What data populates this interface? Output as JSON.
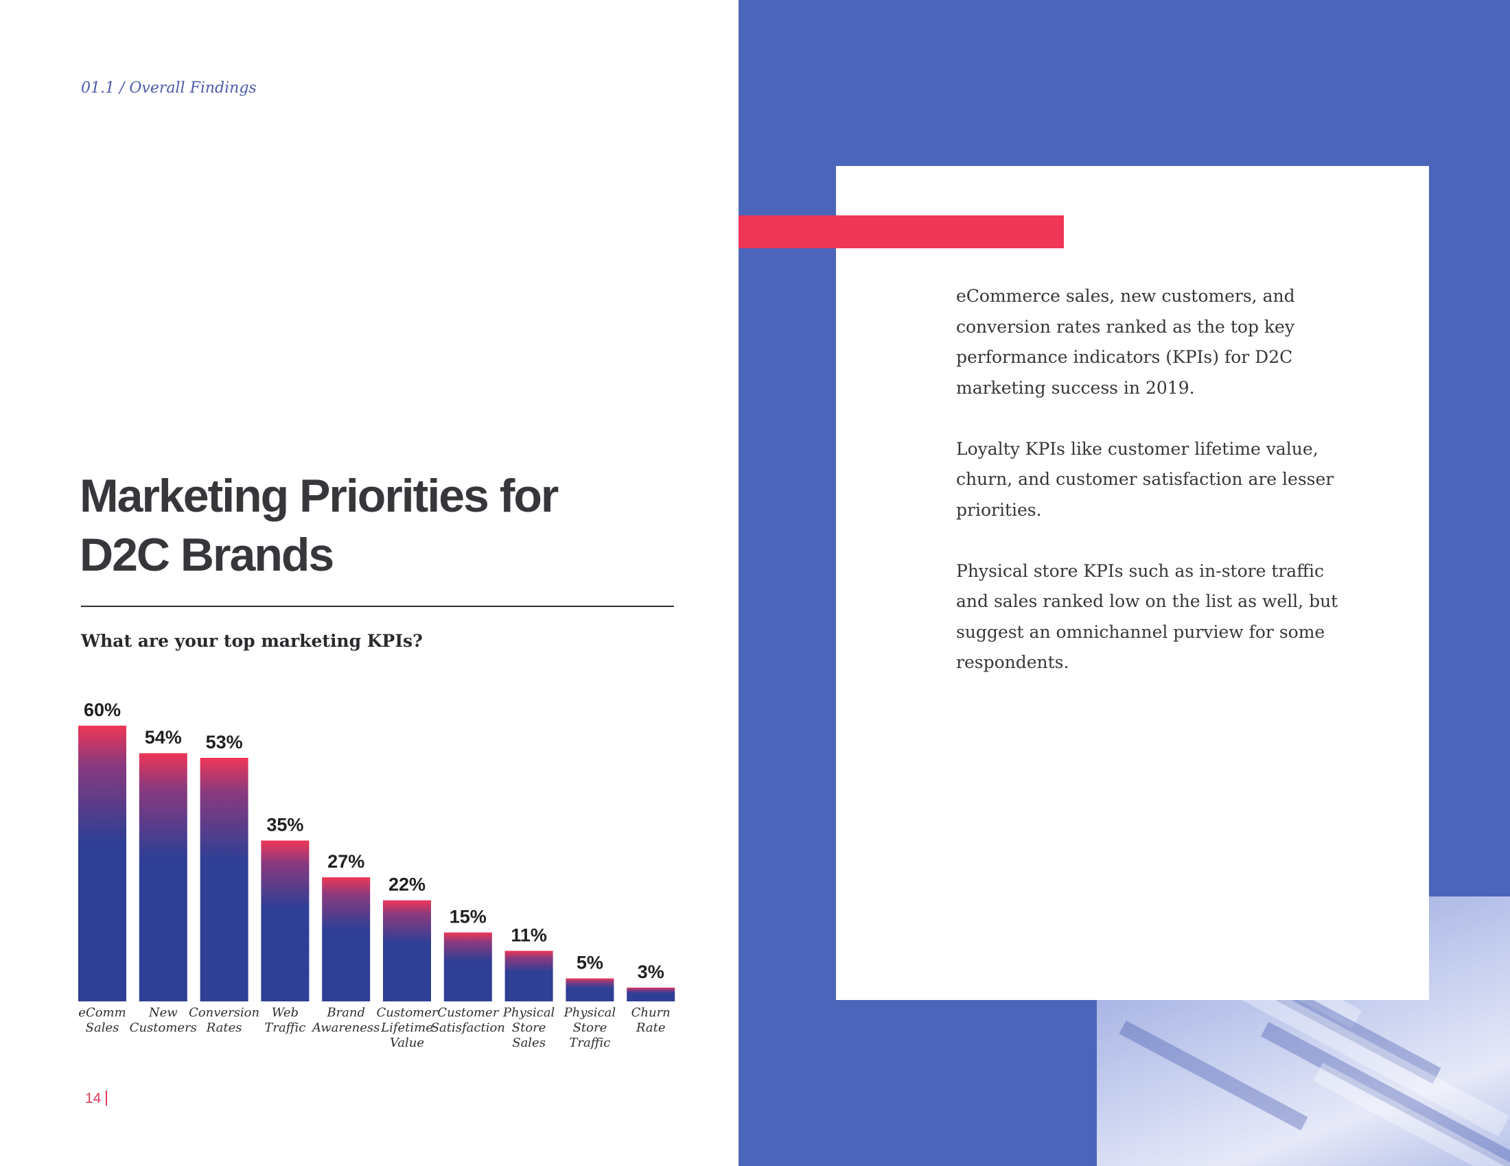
{
  "header": {
    "section_label": "01.1 / Overall Findings"
  },
  "title": {
    "line1": "Marketing Priorities for",
    "line2": "D2C Brands"
  },
  "question": "What are your top marketing KPIs?",
  "chart_data": {
    "type": "bar",
    "title": "What are your top marketing KPIs?",
    "categories": [
      [
        "eComm",
        "Sales"
      ],
      [
        "New",
        "Customers"
      ],
      [
        "Conversion",
        "Rates"
      ],
      [
        "Web",
        "Traffic"
      ],
      [
        "Brand",
        "Awareness"
      ],
      [
        "Customer",
        "Lifetime",
        "Value"
      ],
      [
        "Customer",
        "Satisfaction"
      ],
      [
        "Physical",
        "Store",
        "Sales"
      ],
      [
        "Physical",
        "Store",
        "Traffic"
      ],
      [
        "Churn",
        "Rate"
      ]
    ],
    "values": [
      60,
      54,
      53,
      35,
      27,
      22,
      15,
      11,
      5,
      3
    ],
    "value_labels": [
      "60%",
      "54%",
      "53%",
      "35%",
      "27%",
      "22%",
      "15%",
      "11%",
      "5%",
      "3%"
    ],
    "ylim": [
      0,
      60
    ],
    "grid": false,
    "colors": {
      "bar_top": "#ef3656",
      "bar_body": "#2f3f95"
    }
  },
  "body_paragraphs": [
    "eCommerce sales, new customers, and conversion rates ranked as the top key performance indicators (KPIs) for D2C marketing success in 2019.",
    "Loyalty KPIs like customer lifetime value, churn, and customer satisfaction are lesser priorities.",
    "Physical store KPIs such as in-store traffic and sales ranked low on the list as well, but suggest an omnichannel purview for some respondents."
  ],
  "footer": {
    "page_number": "14"
  },
  "colors": {
    "panel_blue": "#4b65ba",
    "accent_red": "#ef3656",
    "text_dark": "#38363a"
  }
}
